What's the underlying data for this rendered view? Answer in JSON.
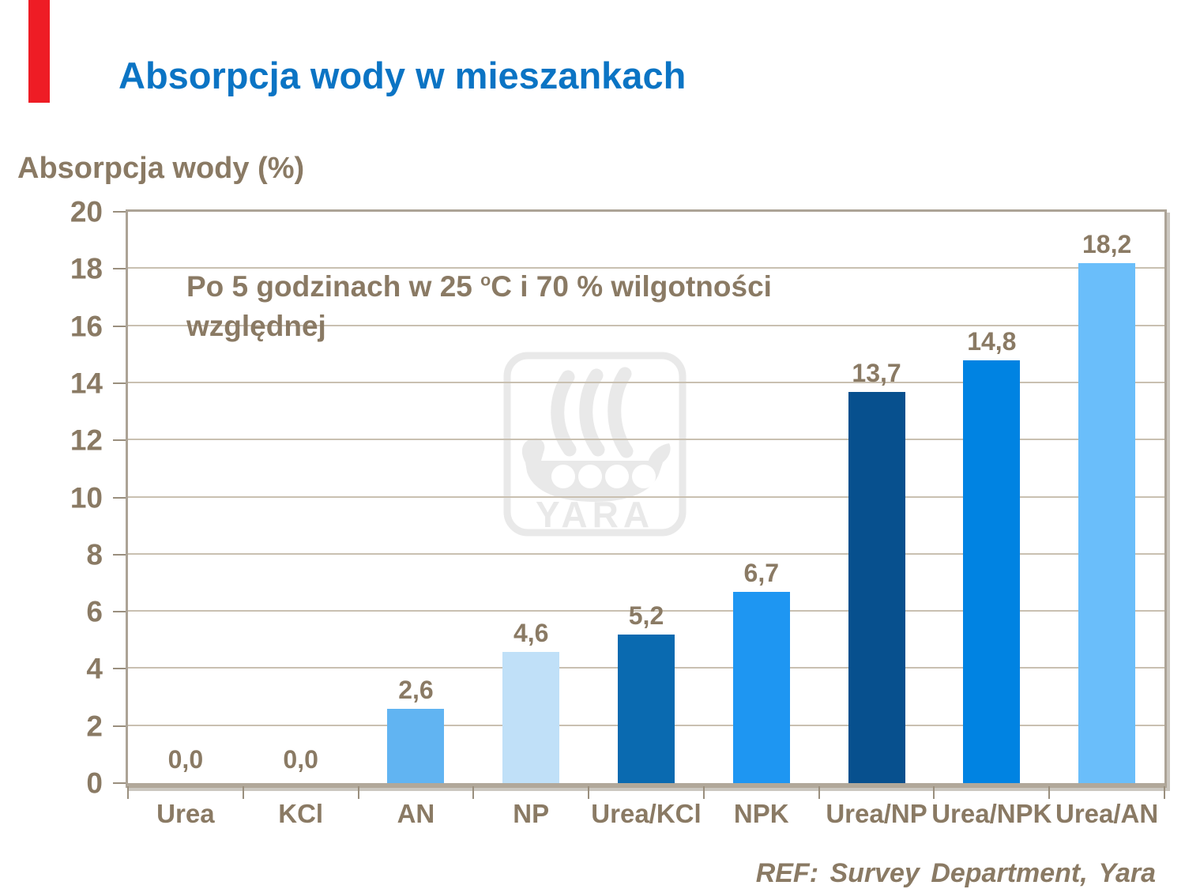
{
  "slide": {
    "footer_ref": "REF: Survey Department, Yara"
  },
  "colors": {
    "background": "#FFFFFF",
    "title_blue": "#0B74C4",
    "text_brown": "#8A7A64",
    "plot_border": "#ACA396",
    "axis_baseline": "#B1A89A",
    "gridline": "#C9C0B1",
    "red_accent": "#EE1C25",
    "watermark_gray": "#E9E9E9"
  },
  "chart_data": {
    "type": "bar",
    "title": "Absorpcja wody w mieszankach",
    "ylabel": "Absorpcja wody (%)",
    "xlabel": "",
    "categories": [
      "Urea",
      "KCl",
      "AN",
      "NP",
      "Urea/KCl",
      "NPK",
      "Urea/NP",
      "Urea/NPK",
      "Urea/AN"
    ],
    "values": [
      0.0,
      0.0,
      2.6,
      4.6,
      5.2,
      6.7,
      13.7,
      14.8,
      18.2
    ],
    "value_labels": [
      "0,0",
      "0,0",
      "2,6",
      "4,6",
      "5,2",
      "6,7",
      "13,7",
      "14,8",
      "18,2"
    ],
    "bar_colors": [
      "#61B4F2",
      "#61B4F2",
      "#61B4F2",
      "#C0E0F8",
      "#0A6AB0",
      "#1E96F2",
      "#07508E",
      "#0083E2",
      "#6ABEFA"
    ],
    "ylim": [
      0,
      20
    ],
    "yticks": [
      0,
      2,
      4,
      6,
      8,
      10,
      12,
      14,
      16,
      18,
      20
    ],
    "grid": true,
    "legend": false,
    "annotation": {
      "pre": "Po 5 godzinach w 25 ",
      "sup": "o",
      "post": "C i 70 % wilgotności względnej"
    },
    "watermark_text": "YARA"
  }
}
